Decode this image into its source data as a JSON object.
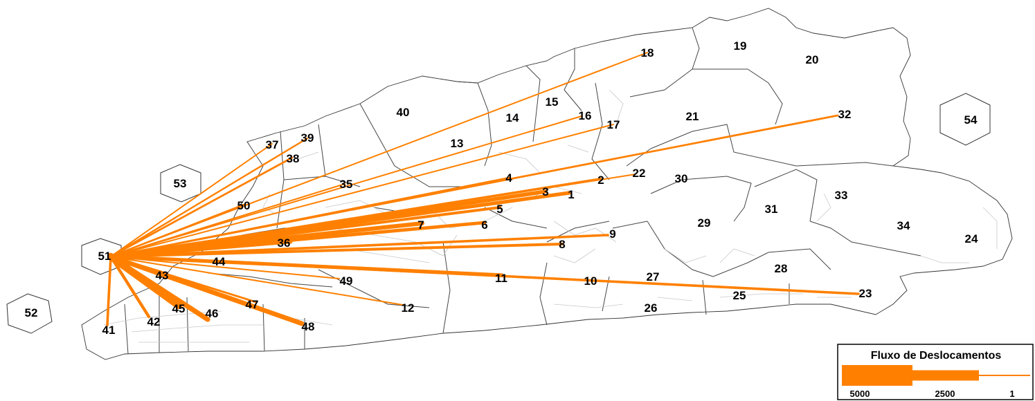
{
  "flow_color": "#ff8000",
  "origin_zone": "51",
  "zones": [
    "1",
    "2",
    "3",
    "4",
    "5",
    "6",
    "7",
    "8",
    "9",
    "10",
    "11",
    "12",
    "13",
    "14",
    "15",
    "16",
    "17",
    "18",
    "19",
    "20",
    "21",
    "22",
    "23",
    "24",
    "25",
    "26",
    "27",
    "28",
    "29",
    "30",
    "31",
    "32",
    "33",
    "34",
    "35",
    "36",
    "37",
    "38",
    "39",
    "40",
    "41",
    "42",
    "43",
    "44",
    "45",
    "46",
    "47",
    "48",
    "49",
    "50",
    "51",
    "52",
    "53",
    "54"
  ],
  "flows": [
    {
      "to": "41",
      "value": 900
    },
    {
      "to": "42",
      "value": 1100
    },
    {
      "to": "43",
      "value": 900
    },
    {
      "to": "45",
      "value": 2600
    },
    {
      "to": "46",
      "value": 1800
    },
    {
      "to": "47",
      "value": 700
    },
    {
      "to": "48",
      "value": 1700
    },
    {
      "to": "12",
      "value": 500
    },
    {
      "to": "49",
      "value": 400
    },
    {
      "to": "44",
      "value": 300
    },
    {
      "to": "11",
      "value": 1300
    },
    {
      "to": "23",
      "value": 900
    },
    {
      "to": "36",
      "value": 1200
    },
    {
      "to": "8",
      "value": 1000
    },
    {
      "to": "9",
      "value": 900
    },
    {
      "to": "7",
      "value": 1500
    },
    {
      "to": "6",
      "value": 1200
    },
    {
      "to": "5",
      "value": 1000
    },
    {
      "to": "3",
      "value": 1400
    },
    {
      "to": "1",
      "value": 1300
    },
    {
      "to": "2",
      "value": 500
    },
    {
      "to": "22",
      "value": 500
    },
    {
      "to": "4",
      "value": 600
    },
    {
      "to": "32",
      "value": 700
    },
    {
      "to": "17",
      "value": 500
    },
    {
      "to": "16",
      "value": 400
    },
    {
      "to": "18",
      "value": 500
    },
    {
      "to": "35",
      "value": 500
    },
    {
      "to": "50",
      "value": 600
    },
    {
      "to": "38",
      "value": 700
    },
    {
      "to": "39",
      "value": 600
    },
    {
      "to": "37",
      "value": 500
    }
  ],
  "legend": {
    "title": "Fluxo de Deslocamentos",
    "ticks": [
      "5000",
      "2500",
      "1"
    ],
    "values": [
      5000,
      2500,
      1
    ]
  }
}
